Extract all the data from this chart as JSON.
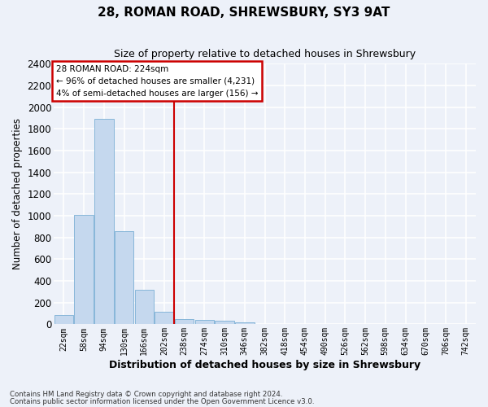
{
  "title1": "28, ROMAN ROAD, SHREWSBURY, SY3 9AT",
  "title2": "Size of property relative to detached houses in Shrewsbury",
  "xlabel": "Distribution of detached houses by size in Shrewsbury",
  "ylabel": "Number of detached properties",
  "bin_labels": [
    "22sqm",
    "58sqm",
    "94sqm",
    "130sqm",
    "166sqm",
    "202sqm",
    "238sqm",
    "274sqm",
    "310sqm",
    "346sqm",
    "382sqm",
    "418sqm",
    "454sqm",
    "490sqm",
    "526sqm",
    "562sqm",
    "598sqm",
    "634sqm",
    "670sqm",
    "706sqm",
    "742sqm"
  ],
  "bar_heights": [
    85,
    1010,
    1890,
    860,
    315,
    115,
    50,
    40,
    30,
    15,
    0,
    0,
    0,
    0,
    0,
    0,
    0,
    0,
    0,
    0,
    0
  ],
  "bar_color": "#c5d8ee",
  "bar_edge_color": "#7aafd4",
  "vline_x": 5.5,
  "vline_color": "#cc0000",
  "annotation_line1": "28 ROMAN ROAD: 224sqm",
  "annotation_line2": "← 96% of detached houses are smaller (4,231)",
  "annotation_line3": "4% of semi-detached houses are larger (156) →",
  "annotation_box_color": "#ffffff",
  "annotation_box_edge_color": "#cc0000",
  "ylim": [
    0,
    2400
  ],
  "yticks": [
    0,
    200,
    400,
    600,
    800,
    1000,
    1200,
    1400,
    1600,
    1800,
    2000,
    2200,
    2400
  ],
  "footer1": "Contains HM Land Registry data © Crown copyright and database right 2024.",
  "footer2": "Contains public sector information licensed under the Open Government Licence v3.0.",
  "background_color": "#edf1f9",
  "grid_color": "#ffffff"
}
